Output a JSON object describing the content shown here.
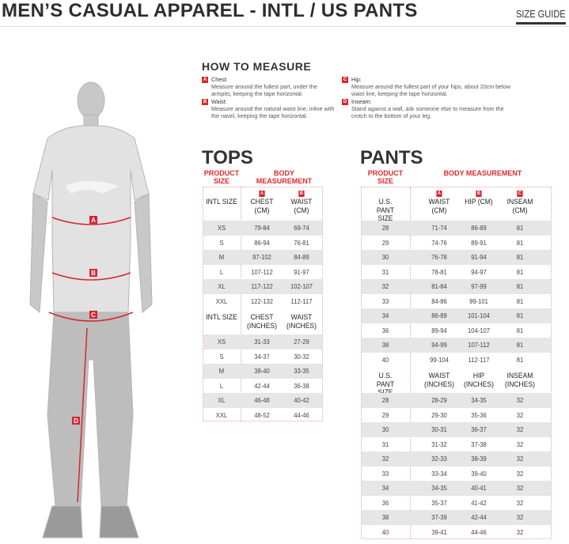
{
  "header": {
    "title": "MEN’S CASUAL APPAREL - INTL / US PANTS",
    "size_guide": "SIZE GUIDE"
  },
  "how_to_measure": {
    "title": "HOW TO MEASURE",
    "items": [
      {
        "letter": "A",
        "label": "Chest:",
        "text": "Measure around the fullest part, under the armpits, keeping the tape horizontal."
      },
      {
        "letter": "B",
        "label": "Waist:",
        "text": "Measure around the natural waist line, inline with the navel, keeping the tape horizontal."
      },
      {
        "letter": "C",
        "label": "Hip:",
        "text": "Measure around the fullest part of your hips, about 20cm below waist line, keeping the tape horizontal."
      },
      {
        "letter": "D",
        "label": "Inseam:",
        "text": "Stand against a wall, ask someone else to measure from the crotch to the bottom of your leg."
      }
    ]
  },
  "figure": {
    "markers": [
      "A",
      "B",
      "C",
      "D"
    ]
  },
  "colors": {
    "accent": "#e0282f",
    "shade": "#e6e6e6"
  },
  "tops": {
    "title": "TOPS",
    "product_size": "PRODUCT SIZE",
    "body_measurement": "BODY MEASUREMENT",
    "cm": {
      "headers": [
        {
          "letter": "",
          "text": "INTL SIZE"
        },
        {
          "letter": "A",
          "text": "CHEST (CM)"
        },
        {
          "letter": "B",
          "text": "WAIST (CM)"
        }
      ],
      "rows": [
        [
          "XS",
          "79-84",
          "69-74"
        ],
        [
          "S",
          "86-94",
          "76-81"
        ],
        [
          "M",
          "97-102",
          "84-89"
        ],
        [
          "L",
          "107-112",
          "91-97"
        ],
        [
          "XL",
          "117-122",
          "102-107"
        ],
        [
          "XXL",
          "122-132",
          "112-117"
        ]
      ]
    },
    "inches": {
      "headers": [
        {
          "letter": "",
          "text": "INTL SIZE"
        },
        {
          "letter": "",
          "text": "CHEST (INCHES)"
        },
        {
          "letter": "",
          "text": "WAIST (INCHES)"
        }
      ],
      "rows": [
        [
          "XS",
          "31-33",
          "27-29"
        ],
        [
          "S",
          "34-37",
          "30-32"
        ],
        [
          "M",
          "38-40",
          "33-35"
        ],
        [
          "L",
          "42-44",
          "36-38"
        ],
        [
          "XL",
          "46-48",
          "40-42"
        ],
        [
          "XXL",
          "48-52",
          "44-46"
        ]
      ]
    }
  },
  "pants": {
    "title": "PANTS",
    "product_size": "PRODUCT SIZE",
    "body_measurement": "BODY MEASUREMENT",
    "cm": {
      "headers": [
        {
          "letter": "",
          "text": "U.S. PANT SIZE"
        },
        {
          "letter": "A",
          "text": "WAIST (CM)"
        },
        {
          "letter": "B",
          "text": "HIP (CM)"
        },
        {
          "letter": "C",
          "text": "INSEAM (CM)"
        }
      ],
      "rows": [
        [
          "28",
          "71-74",
          "86-89",
          "81"
        ],
        [
          "29",
          "74-76",
          "89-91",
          "81"
        ],
        [
          "30",
          "76-78",
          "91-94",
          "81"
        ],
        [
          "31",
          "78-81",
          "94-97",
          "81"
        ],
        [
          "32",
          "81-84",
          "97-99",
          "81"
        ],
        [
          "33",
          "84-86",
          "99-101",
          "81"
        ],
        [
          "34",
          "86-89",
          "101-104",
          "81"
        ],
        [
          "36",
          "89-94",
          "104-107",
          "81"
        ],
        [
          "38",
          "94-99",
          "107-112",
          "81"
        ],
        [
          "40",
          "99-104",
          "112-117",
          "81"
        ]
      ]
    },
    "inches": {
      "headers": [
        {
          "letter": "",
          "text": "U.S. PANT SIZE"
        },
        {
          "letter": "",
          "text": "WAIST (INCHES)"
        },
        {
          "letter": "",
          "text": "HIP (INCHES)"
        },
        {
          "letter": "",
          "text": "INSEAM (INCHES)"
        }
      ],
      "rows": [
        [
          "28",
          "28-29",
          "34-35",
          "32"
        ],
        [
          "29",
          "29-30",
          "35-36",
          "32"
        ],
        [
          "30",
          "30-31",
          "36-37",
          "32"
        ],
        [
          "31",
          "31-32",
          "37-38",
          "32"
        ],
        [
          "32",
          "32-33",
          "38-39",
          "32"
        ],
        [
          "33",
          "33-34",
          "39-40",
          "32"
        ],
        [
          "34",
          "34-35",
          "40-41",
          "32"
        ],
        [
          "36",
          "35-37",
          "41-42",
          "32"
        ],
        [
          "38",
          "37-39",
          "42-44",
          "32"
        ],
        [
          "40",
          "39-41",
          "44-46",
          "32"
        ]
      ]
    }
  }
}
